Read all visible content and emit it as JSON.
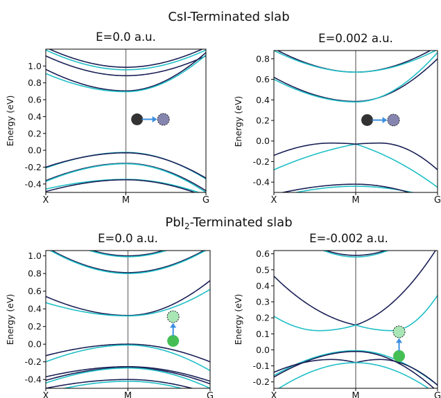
{
  "figure": {
    "sections": [
      {
        "title": "CsI-Terminated slab"
      },
      {
        "title_main": "PbI",
        "title_sub": "2",
        "title_rest": "-Terminated slab"
      }
    ]
  },
  "colors": {
    "band_dark": "#1a1f55",
    "band_cyan": "#1fbfc6",
    "gridline": "#8c8c8c",
    "arrow": "#3b8fe0",
    "atom_dark": "#333333",
    "atom_purple": "#8585b0",
    "atom_green": "#45bf55",
    "atom_lightgreen": "#a8e6b6"
  },
  "chart_data": [
    {
      "type": "line",
      "title": "E=0.0 a.u.",
      "ylabel": "Energy (eV)",
      "x_ticks": [
        "X",
        "M",
        "G"
      ],
      "xlim": [
        -1,
        1
      ],
      "ylim": [
        -0.5,
        1.2
      ],
      "y_ticks": [
        -0.4,
        -0.2,
        0.0,
        0.2,
        0.4,
        0.6,
        0.8,
        1.0
      ],
      "inset": "horizontal-arrow-dark-to-purple",
      "series": [
        {
          "color": "dark",
          "kind": "conduction",
          "min": 0.985,
          "left_end": 1.22,
          "right_end": 1.22
        },
        {
          "color": "cyan",
          "kind": "conduction",
          "min": 0.955,
          "left_end": 1.19,
          "right_end": 1.19
        },
        {
          "color": "dark",
          "kind": "conduction",
          "min": 0.885,
          "left_end": 1.12,
          "right_end": 1.12
        },
        {
          "color": "dark",
          "kind": "conduction",
          "min": 0.705,
          "left_end": 0.96,
          "right_end": 1.16
        },
        {
          "color": "cyan",
          "kind": "conduction",
          "min": 0.695,
          "left_end": 0.91,
          "right_end": 1.13
        },
        {
          "color": "cyan",
          "kind": "valence",
          "max": -0.025,
          "left_end": -0.21,
          "right_end": -0.34
        },
        {
          "color": "dark",
          "kind": "valence",
          "max": -0.03,
          "left_end": -0.2,
          "right_end": -0.33
        },
        {
          "color": "dark",
          "kind": "valence",
          "max": -0.155,
          "left_end": -0.36,
          "right_end": -0.48
        },
        {
          "color": "cyan",
          "kind": "valence",
          "max": -0.16,
          "left_end": -0.37,
          "right_end": -0.5
        },
        {
          "color": "cyan",
          "kind": "valence",
          "max": -0.345,
          "left_end": -0.46,
          "right_end": -0.53
        },
        {
          "color": "dark",
          "kind": "valence",
          "max": -0.35,
          "left_end": -0.49,
          "right_end": -0.55
        }
      ]
    },
    {
      "type": "line",
      "title": "E=0.002 a.u.",
      "ylabel": "Energy (eV)",
      "x_ticks": [
        "X",
        "M",
        "G"
      ],
      "xlim": [
        -1,
        1
      ],
      "ylim": [
        -0.5,
        0.88
      ],
      "y_ticks": [
        -0.4,
        -0.2,
        0.0,
        0.2,
        0.4,
        0.6,
        0.8
      ],
      "inset": "horizontal-arrow-dark-to-purple",
      "series": [
        {
          "color": "dark",
          "kind": "conduction",
          "min": 0.67,
          "left_end": 0.9,
          "right_end": 0.92
        },
        {
          "color": "cyan",
          "kind": "conduction",
          "min": 0.67,
          "left_end": 0.88,
          "right_end": 0.89
        },
        {
          "color": "dark",
          "kind": "conduction",
          "min": 0.385,
          "left_end": 0.62,
          "right_end": 0.8
        },
        {
          "color": "cyan",
          "kind": "conduction",
          "min": 0.38,
          "left_end": 0.6,
          "right_end": 0.86
        },
        {
          "color": "cyan",
          "kind": "valence_tilt",
          "peak_x": 0.0,
          "max": -0.03,
          "left_end": -0.28,
          "right_end": -0.45
        },
        {
          "color": "dark",
          "kind": "valence_split",
          "split": 0.3,
          "max": -0.02,
          "center": -0.03,
          "left_end": -0.14,
          "right_end": -0.28
        },
        {
          "color": "cyan",
          "kind": "valence",
          "max": -0.44,
          "left_end": -0.55,
          "right_end": -0.56
        },
        {
          "color": "dark",
          "kind": "valence",
          "max": -0.42,
          "left_end": -0.52,
          "right_end": -0.6
        }
      ]
    },
    {
      "type": "line",
      "title": "E=0.0 a.u.",
      "ylabel": "Energy (eV)",
      "x_ticks": [
        "X",
        "M",
        "G"
      ],
      "xlim": [
        -1,
        1
      ],
      "ylim": [
        -0.5,
        1.06
      ],
      "y_ticks": [
        -0.4,
        -0.2,
        0.0,
        0.2,
        0.4,
        0.6,
        0.8,
        1.0
      ],
      "inset": "vertical-arrow-green-to-lightgreen",
      "series": [
        {
          "color": "dark",
          "kind": "conduction",
          "min": 1.0,
          "left_end": 1.3,
          "right_end": 1.3
        },
        {
          "color": "cyan",
          "kind": "conduction",
          "min": 0.99,
          "left_end": 1.29,
          "right_end": 1.29
        },
        {
          "color": "dark",
          "kind": "conduction",
          "min": 0.81,
          "left_end": 1.1,
          "right_end": 1.1
        },
        {
          "color": "cyan",
          "kind": "conduction",
          "min": 0.8,
          "left_end": 1.09,
          "right_end": 1.09
        },
        {
          "color": "dark",
          "kind": "conduction",
          "min": 0.325,
          "left_end": 0.54,
          "right_end": 0.72
        },
        {
          "color": "cyan",
          "kind": "conduction",
          "min": 0.32,
          "left_end": 0.47,
          "right_end": 0.62
        },
        {
          "color": "dark",
          "kind": "valence",
          "max": 0.0,
          "left_end": -0.13,
          "right_end": -0.2
        },
        {
          "color": "cyan",
          "kind": "valence",
          "max": -0.01,
          "left_end": -0.2,
          "right_end": -0.3
        },
        {
          "color": "dark",
          "kind": "valence",
          "max": -0.255,
          "left_end": -0.37,
          "right_end": -0.42
        },
        {
          "color": "dark",
          "kind": "valence",
          "max": -0.265,
          "left_end": -0.41,
          "right_end": -0.45
        },
        {
          "color": "cyan",
          "kind": "valence",
          "max": -0.27,
          "left_end": -0.44,
          "right_end": -0.5
        },
        {
          "color": "dark",
          "kind": "valence",
          "max": -0.4,
          "left_end": -0.5,
          "right_end": -0.56
        },
        {
          "color": "cyan",
          "kind": "valence",
          "max": -0.42,
          "left_end": -0.55,
          "right_end": -0.6
        }
      ]
    },
    {
      "type": "line",
      "title": "E=-0.002 a.u.",
      "ylabel": "Energy (eV)",
      "x_ticks": [
        "X",
        "M",
        "G"
      ],
      "xlim": [
        -1,
        1
      ],
      "ylim": [
        -0.24,
        0.62
      ],
      "y_ticks": [
        -0.2,
        -0.1,
        0.0,
        0.1,
        0.2,
        0.3,
        0.4,
        0.5,
        0.6
      ],
      "inset": "vertical-arrow-green-to-lightgreen",
      "series": [
        {
          "color": "dark",
          "kind": "conduction",
          "min": 0.59,
          "left_end": 0.8,
          "right_end": 0.8
        },
        {
          "color": "cyan",
          "kind": "conduction",
          "min": 0.58,
          "left_end": 0.82,
          "right_end": 0.82
        },
        {
          "color": "dark",
          "kind": "conduction_vshape",
          "min": 0.155,
          "left_end": 0.46,
          "right_end": 0.64
        },
        {
          "color": "cyan",
          "kind": "conduction_split",
          "split": 0.45,
          "min": 0.12,
          "center": 0.155,
          "left_end": 0.21,
          "right_end": 0.34
        },
        {
          "color": "cyan",
          "kind": "valence",
          "max": -0.005,
          "left_end": -0.16,
          "right_end": -0.22
        },
        {
          "color": "dark",
          "kind": "valence_split",
          "split": 0.3,
          "max": -0.06,
          "center": -0.08,
          "left_end": -0.14,
          "right_end": -0.22
        },
        {
          "color": "cyan",
          "kind": "valence",
          "max": -0.08,
          "left_end": -0.26,
          "right_end": -0.28
        },
        {
          "color": "dark",
          "kind": "valence",
          "max": -0.01,
          "left_end": -0.17,
          "right_end": -0.26
        }
      ]
    }
  ]
}
